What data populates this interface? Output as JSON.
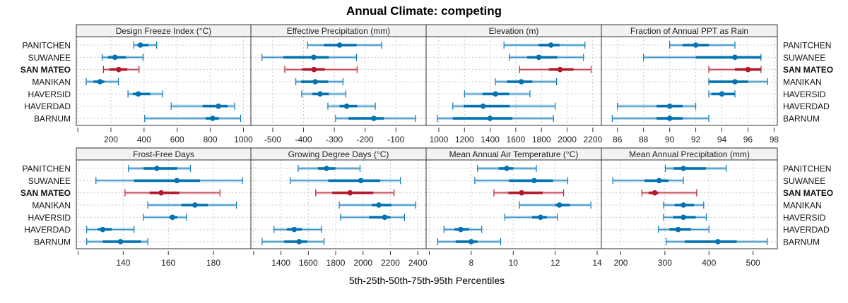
{
  "chart_data": {
    "type": "dot-range",
    "title": "Annual Climate: competing",
    "xlabel": "5th-25th-50th-75th-95th Percentiles",
    "highlight": "SAN MATEO",
    "sites": [
      "PANITCHEN",
      "SUWANEE",
      "SAN MATEO",
      "MANIKAN",
      "HAVERSID",
      "HAVERDAD",
      "BARNUM"
    ],
    "colors": {
      "normal": "#0072b2",
      "normal_light": "#5fa8d3",
      "highlight": "#b2182b",
      "highlight_light": "#d47a82",
      "strip": "#f2f2f2",
      "grid": "#c8c8c8"
    },
    "percentile_order": [
      "p5",
      "p25",
      "p50",
      "p75",
      "p95"
    ],
    "panels": [
      {
        "title": "Design Freeze Index (°C)",
        "xlim": [
          -9,
          1045
        ],
        "ticks": [
          200,
          400,
          600,
          800,
          1000
        ],
        "minor_ticks": [
          0
        ],
        "values": [
          [
            338,
            360,
            378,
            427,
            476
          ],
          [
            147,
            182,
            224,
            291,
            394
          ],
          [
            155,
            190,
            247,
            299,
            370
          ],
          [
            51,
            95,
            134,
            160,
            245
          ],
          [
            303,
            332,
            365,
            438,
            513
          ],
          [
            564,
            754,
            849,
            904,
            947
          ],
          [
            404,
            773,
            814,
            852,
            983
          ]
        ]
      },
      {
        "title": "Effective Precipitation (mm)",
        "xlim": [
          -571,
          -2
        ],
        "ticks": [
          -500,
          -400,
          -300,
          -200,
          -100
        ],
        "minor_ticks": [],
        "values": [
          [
            -387,
            -334,
            -283,
            -228,
            -146
          ],
          [
            -535,
            -465,
            -367,
            -318,
            -228
          ],
          [
            -461,
            -405,
            -366,
            -331,
            -226
          ],
          [
            -425,
            -408,
            -362,
            -320,
            -272
          ],
          [
            -406,
            -371,
            -346,
            -318,
            -263
          ],
          [
            -321,
            -283,
            -260,
            -226,
            -167
          ],
          [
            -296,
            -254,
            -172,
            -139,
            -36
          ]
        ]
      },
      {
        "title": "Elevation (m)",
        "xlim": [
          901,
          2267
        ],
        "ticks": [
          1000,
          1200,
          1400,
          1600,
          1800,
          2000,
          2200
        ],
        "minor_ticks": [],
        "values": [
          [
            1508,
            1777,
            1874,
            1941,
            2139
          ],
          [
            1550,
            1689,
            1779,
            1924,
            2128
          ],
          [
            1630,
            1857,
            1945,
            2050,
            2187
          ],
          [
            1441,
            1531,
            1643,
            1729,
            1918
          ],
          [
            1200,
            1340,
            1441,
            1548,
            1710
          ],
          [
            1109,
            1195,
            1345,
            1552,
            1907
          ],
          [
            987,
            1109,
            1399,
            1573,
            1893
          ]
        ]
      },
      {
        "title": "Fraction of Annual PPT as Rain",
        "xlim": [
          84.77,
          98.25
        ],
        "ticks": [
          86,
          88,
          90,
          92,
          94,
          96,
          98
        ],
        "minor_ticks": [],
        "values": [
          [
            90,
            91,
            92,
            93,
            95
          ],
          [
            88,
            92,
            95,
            97,
            97
          ],
          [
            93,
            95,
            96,
            97,
            97
          ],
          [
            93,
            93,
            95,
            96,
            97.5
          ],
          [
            93,
            93.2,
            94,
            95,
            95
          ],
          [
            86,
            89,
            90,
            91,
            92
          ],
          [
            85.6,
            89,
            90,
            91,
            93
          ]
        ]
      },
      {
        "title": "Frost-Free Days",
        "xlim": [
          119.2,
          196.6
        ],
        "ticks": [
          140,
          160,
          180
        ],
        "minor_ticks": [
          120
        ],
        "values": [
          [
            142.3,
            149,
            154.9,
            164,
            169.8
          ],
          [
            127.9,
            144.8,
            163.8,
            174,
            192.9
          ],
          [
            140.8,
            151.7,
            156.8,
            164.9,
            182.9
          ],
          [
            150.9,
            165.8,
            171.8,
            177.5,
            190.2
          ],
          [
            148.9,
            160.4,
            161.8,
            164,
            168
          ],
          [
            123.8,
            128.8,
            130.9,
            134.9,
            144.8
          ],
          [
            123.8,
            130.9,
            138.8,
            147.9,
            150.9
          ]
        ]
      },
      {
        "title": "Growing Degree Days (°C)",
        "xlim": [
          1180,
          2461
        ],
        "ticks": [
          1400,
          1600,
          1800,
          2000,
          2200,
          2400
        ],
        "minor_ticks": [
          1200
        ],
        "values": [
          [
            1526,
            1670,
            1733,
            1798,
            1978
          ],
          [
            1467,
            1745,
            1984,
            2125,
            2273
          ],
          [
            1654,
            1775,
            1905,
            2075,
            2227
          ],
          [
            1826,
            2065,
            2115,
            2207,
            2385
          ],
          [
            1836,
            2045,
            2158,
            2200,
            2303
          ],
          [
            1349,
            1444,
            1497,
            1553,
            1697
          ],
          [
            1262,
            1424,
            1533,
            1592,
            1715
          ]
        ]
      },
      {
        "title": "Mean Annual Air Temperature (°C)",
        "xlim": [
          5.85,
          14.2
        ],
        "ticks": [
          8,
          10,
          12,
          14
        ],
        "minor_ticks": [
          6
        ],
        "values": [
          [
            8.3,
            9.3,
            9.69,
            10.0,
            11.1
          ],
          [
            8.17,
            9.8,
            11.0,
            11.9,
            12.6
          ],
          [
            9.08,
            9.77,
            10.4,
            11.4,
            12.4
          ],
          [
            10.3,
            12.0,
            12.2,
            12.7,
            13.7
          ],
          [
            9.6,
            10.9,
            11.3,
            11.6,
            12.1
          ],
          [
            6.7,
            7.2,
            7.5,
            7.9,
            8.5
          ],
          [
            6.4,
            7.26,
            8.0,
            8.3,
            9.4
          ]
        ]
      },
      {
        "title": "Mean Annual Precipitation (mm)",
        "xlim": [
          156,
          555
        ],
        "ticks": [
          200,
          300,
          400,
          500
        ],
        "minor_ticks": [],
        "values": [
          [
            301,
            320,
            342,
            393,
            439
          ],
          [
            182,
            254,
            287,
            308,
            342
          ],
          [
            248,
            263,
            277,
            285,
            372
          ],
          [
            297,
            322,
            342,
            366,
            388
          ],
          [
            297,
            319,
            342,
            370,
            394
          ],
          [
            285,
            310,
            330,
            359,
            400
          ],
          [
            303,
            345,
            420,
            463,
            532
          ]
        ]
      }
    ]
  }
}
